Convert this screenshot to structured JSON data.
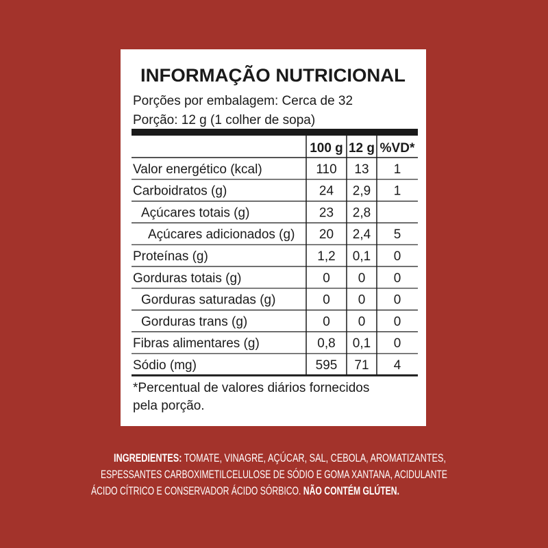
{
  "label": {
    "title": "INFORMAÇÃO NUTRICIONAL",
    "servings_per_package": "Porções por embalagem: Cerca de 32",
    "serving_size": "Porção: 12 g (1 colher de sopa)",
    "header": [
      "100 g",
      "12 g",
      "%VD*"
    ],
    "rows": [
      [
        "Valor energético (kcal)",
        "110",
        "13",
        "1"
      ],
      [
        "Carboidratos (g)",
        "24",
        "2,9",
        "1"
      ],
      [
        "Açúcares totais (g)",
        "23",
        "2,8",
        null
      ],
      [
        "Açúcares adicionados (g)",
        "20",
        "2,4",
        "5"
      ],
      [
        "Proteínas (g)",
        "1,2",
        "0,1",
        "0"
      ],
      [
        "Gorduras totais (g)",
        "0",
        "0",
        "0"
      ],
      [
        "Gorduras saturadas (g)",
        "0",
        "0",
        "0"
      ],
      [
        "Gorduras trans (g)",
        "0",
        "0",
        "0"
      ],
      [
        "Fibras alimentares (g)",
        "0,8",
        "0,1",
        "0"
      ],
      [
        "Sódio (mg)",
        "595",
        "71",
        "4"
      ]
    ],
    "footnote": [
      "*Percentual de valores diários fornecidos",
      "pela porção."
    ]
  },
  "ingredients": {
    "heading": "INGREDIENTES:",
    "lines": [
      "TOMATE, VINAGRE, AÇÚCAR, SAL, CEBOLA, AROMATIZANTES,",
      "ESPESSANTES CARBOXIMETILCELULOSE DE SÓDIO E GOMA XANTANA, ACIDULANTE",
      "ÁCIDO CÍTRICO E CONSERVADOR ÁCIDO SÓRBICO."
    ],
    "gluten": "NÃO CONTÉM GLÚTEN."
  }
}
